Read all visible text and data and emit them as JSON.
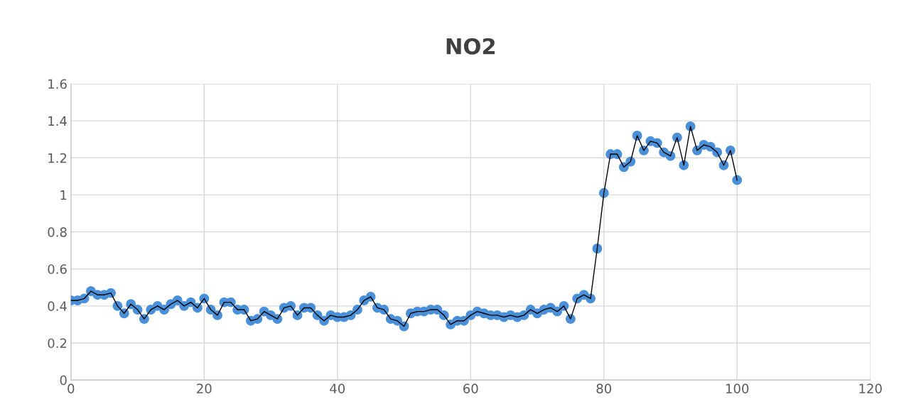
{
  "chart_data": {
    "type": "line",
    "title": "NO2",
    "x": [
      0,
      1,
      2,
      3,
      4,
      5,
      6,
      7,
      8,
      9,
      10,
      11,
      12,
      13,
      14,
      15,
      16,
      17,
      18,
      19,
      20,
      21,
      22,
      23,
      24,
      25,
      26,
      27,
      28,
      29,
      30,
      31,
      32,
      33,
      34,
      35,
      36,
      37,
      38,
      39,
      40,
      41,
      42,
      43,
      44,
      45,
      46,
      47,
      48,
      49,
      50,
      51,
      52,
      53,
      54,
      55,
      56,
      57,
      58,
      59,
      60,
      61,
      62,
      63,
      64,
      65,
      66,
      67,
      68,
      69,
      70,
      71,
      72,
      73,
      74,
      75,
      76,
      77,
      78,
      79,
      80,
      81,
      82,
      83,
      84,
      85,
      86,
      87,
      88,
      89,
      90,
      91,
      92,
      93,
      94,
      95,
      96,
      97,
      98,
      99,
      100
    ],
    "series": [
      {
        "color": "#4a90d9",
        "values": [
          0.43,
          0.43,
          0.44,
          0.48,
          0.46,
          0.46,
          0.47,
          0.4,
          0.36,
          0.41,
          0.38,
          0.33,
          0.38,
          0.4,
          0.38,
          0.41,
          0.43,
          0.4,
          0.42,
          0.39,
          0.44,
          0.38,
          0.35,
          0.42,
          0.42,
          0.38,
          0.38,
          0.32,
          0.33,
          0.37,
          0.35,
          0.33,
          0.39,
          0.4,
          0.35,
          0.39,
          0.39,
          0.35,
          0.32,
          0.35,
          0.34,
          0.34,
          0.35,
          0.38,
          0.43,
          0.45,
          0.39,
          0.38,
          0.33,
          0.32,
          0.29,
          0.36,
          0.37,
          0.37,
          0.38,
          0.38,
          0.35,
          0.3,
          0.32,
          0.32,
          0.35,
          0.37,
          0.36,
          0.35,
          0.35,
          0.34,
          0.35,
          0.34,
          0.35,
          0.38,
          0.36,
          0.38,
          0.39,
          0.37,
          0.4,
          0.33,
          0.44,
          0.46,
          0.44,
          0.71,
          1.01,
          1.22,
          1.22,
          1.15,
          1.18,
          1.32,
          1.24,
          1.29,
          1.28,
          1.23,
          1.21,
          1.31,
          1.16,
          1.37,
          1.24,
          1.27,
          1.26,
          1.23,
          1.16,
          1.24,
          1.08
        ]
      }
    ],
    "xlim": [
      0,
      120
    ],
    "xticks": [
      0,
      20,
      40,
      60,
      80,
      100,
      120
    ],
    "ylim": [
      0,
      1.6
    ],
    "yticks": [
      0,
      {
        "value": 0.2,
        "label": "0.2"
      },
      {
        "value": 0.4,
        "label": "0.4"
      },
      {
        "value": 0.6,
        "label": "0.6"
      },
      {
        "value": 0.8,
        "label": "0.8"
      },
      1,
      {
        "value": 1.2,
        "label": "1.2"
      },
      {
        "value": 1.4,
        "label": "1.4"
      },
      {
        "value": 1.6,
        "label": "1.6"
      }
    ],
    "grid": true,
    "marker": "circle",
    "line_style": "solid"
  }
}
